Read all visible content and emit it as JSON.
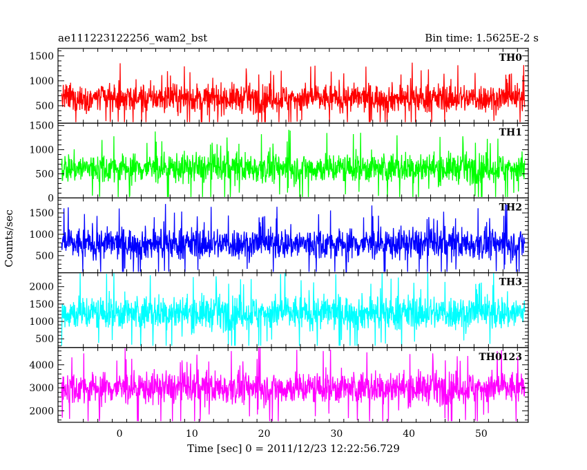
{
  "chart_data": {
    "type": "line",
    "title_left": "ae111223122256_wam2_bst",
    "title_right": "Bin time: 1.5625E-2 s",
    "xlabel": "Time [sec] 0 = 2011/12/23 12:22:56.729",
    "ylabel": "Counts/sec",
    "xlim": [
      -8.5,
      56.5
    ],
    "x_ticks": [
      0,
      10,
      20,
      30,
      40,
      50
    ],
    "x_range_data": [
      -8,
      56
    ],
    "series": [
      {
        "name": "TH0",
        "color": "#ff0000",
        "ylim": [
          150,
          1650
        ],
        "y_ticks": [
          500,
          1000,
          1500
        ],
        "mean": 650,
        "spread": 200,
        "min": 170,
        "max": 1640
      },
      {
        "name": "TH1",
        "color": "#00ff00",
        "ylim": [
          0,
          1550
        ],
        "y_ticks": [
          0,
          500,
          1000,
          1500
        ],
        "mean": 620,
        "spread": 220,
        "min": 20,
        "max": 1540
      },
      {
        "name": "TH2",
        "color": "#0000ff",
        "ylim": [
          100,
          1850
        ],
        "y_ticks": [
          500,
          1000,
          1500
        ],
        "mean": 780,
        "spread": 260,
        "min": 120,
        "max": 1840
      },
      {
        "name": "TH3",
        "color": "#00ffff",
        "ylim": [
          250,
          2400
        ],
        "y_ticks": [
          500,
          1000,
          1500,
          2000
        ],
        "mean": 1250,
        "spread": 350,
        "min": 300,
        "max": 2390
      },
      {
        "name": "TH0123",
        "color": "#ff00ff",
        "ylim": [
          1500,
          4750
        ],
        "y_ticks": [
          2000,
          3000,
          4000
        ],
        "mean": 3000,
        "spread": 500,
        "min": 1550,
        "max": 4740
      }
    ]
  }
}
